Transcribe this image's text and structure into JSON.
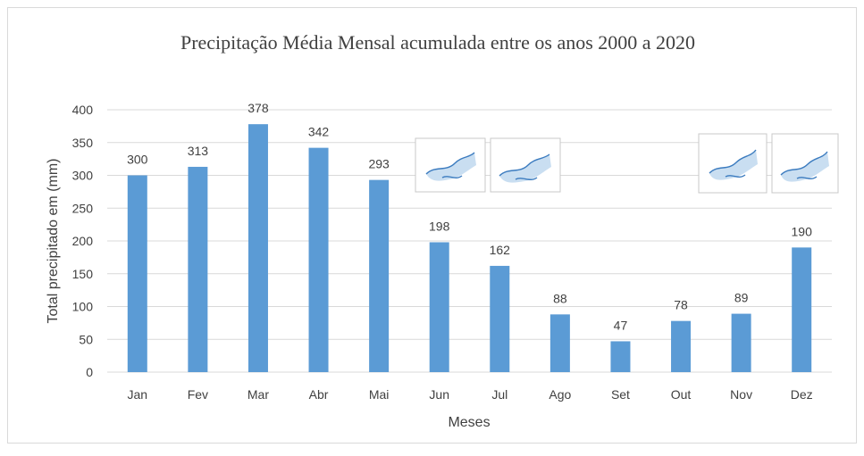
{
  "chart_data": {
    "type": "bar",
    "title": "Precipitação Média Mensal acumulada entre os anos 2000 a 2020",
    "xlabel": "Meses",
    "ylabel": "Total precipitado em (mm)",
    "categories": [
      "Jan",
      "Fev",
      "Mar",
      "Abr",
      "Mai",
      "Jun",
      "Jul",
      "Ago",
      "Set",
      "Out",
      "Nov",
      "Dez"
    ],
    "values": [
      300,
      313,
      378,
      342,
      293,
      198,
      162,
      88,
      47,
      78,
      89,
      190
    ],
    "ylim": [
      0,
      400
    ],
    "yticks": [
      0,
      50,
      100,
      150,
      200,
      250,
      300,
      350,
      400
    ],
    "grid": true,
    "bar_color": "#5b9bd5",
    "data_labels": true
  },
  "inset_images": [
    "map-thumbnail",
    "map-thumbnail",
    "map-thumbnail",
    "map-thumbnail"
  ]
}
